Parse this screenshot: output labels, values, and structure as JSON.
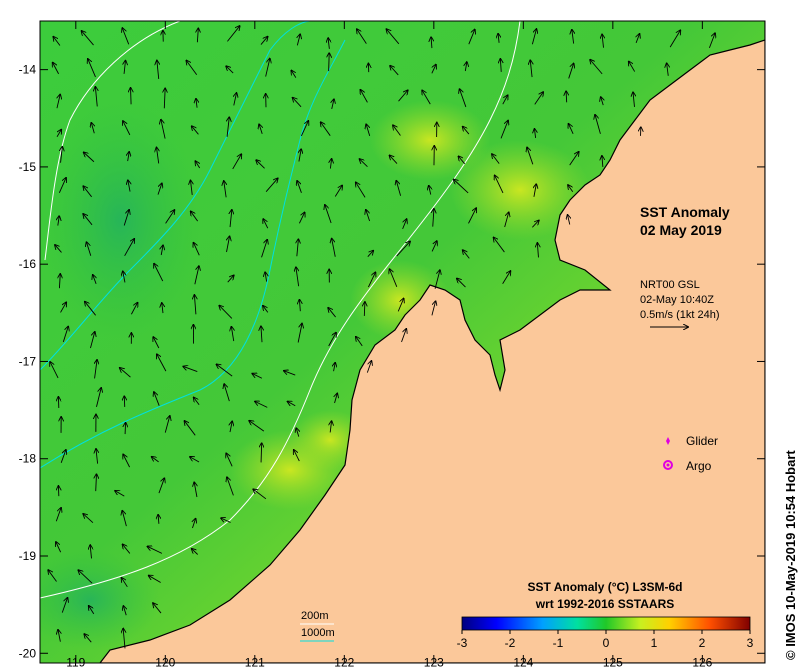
{
  "title": {
    "line1": "SST Anomaly",
    "line2": "02 May 2019"
  },
  "current_info": {
    "source": "NRT00 GSL",
    "time": "02-May 10:40Z",
    "scale": "0.5m/s (1kt 24h)"
  },
  "legend": {
    "items": [
      {
        "label": "Glider",
        "color": "#e000e0"
      },
      {
        "label": "Argo",
        "color": "#e000e0"
      }
    ]
  },
  "contours": [
    {
      "label": "200m",
      "color": "#ffffff"
    },
    {
      "label": "1000m",
      "color": "#00e0e0"
    }
  ],
  "colorbar": {
    "title_line1": "SST Anomaly (°C) L3SM-6d",
    "title_line2": "wrt 1992-2016 SSTAARS",
    "ticks": [
      "-3",
      "-2",
      "-1",
      "0",
      "1",
      "2",
      "3"
    ],
    "min": -3,
    "max": 3
  },
  "axes": {
    "x_ticks": [
      "119",
      "120",
      "121",
      "122",
      "123",
      "124",
      "125",
      "126"
    ],
    "y_ticks": [
      "-14",
      "-15",
      "-16",
      "-17",
      "-18",
      "-19",
      "-20"
    ],
    "lon_range": [
      118.6,
      126.7
    ],
    "lat_range": [
      -20.1,
      -13.5
    ]
  },
  "credit": "© IMOS 10-May-2019 10:54 Hobart",
  "colors": {
    "land": "#fbc89a",
    "sea_main": "#38c83c",
    "sea_warm": "#9adc28",
    "sea_yellow": "#d8e820",
    "contour_200m": "#ffffff",
    "contour_1000m": "#00e0e0"
  }
}
